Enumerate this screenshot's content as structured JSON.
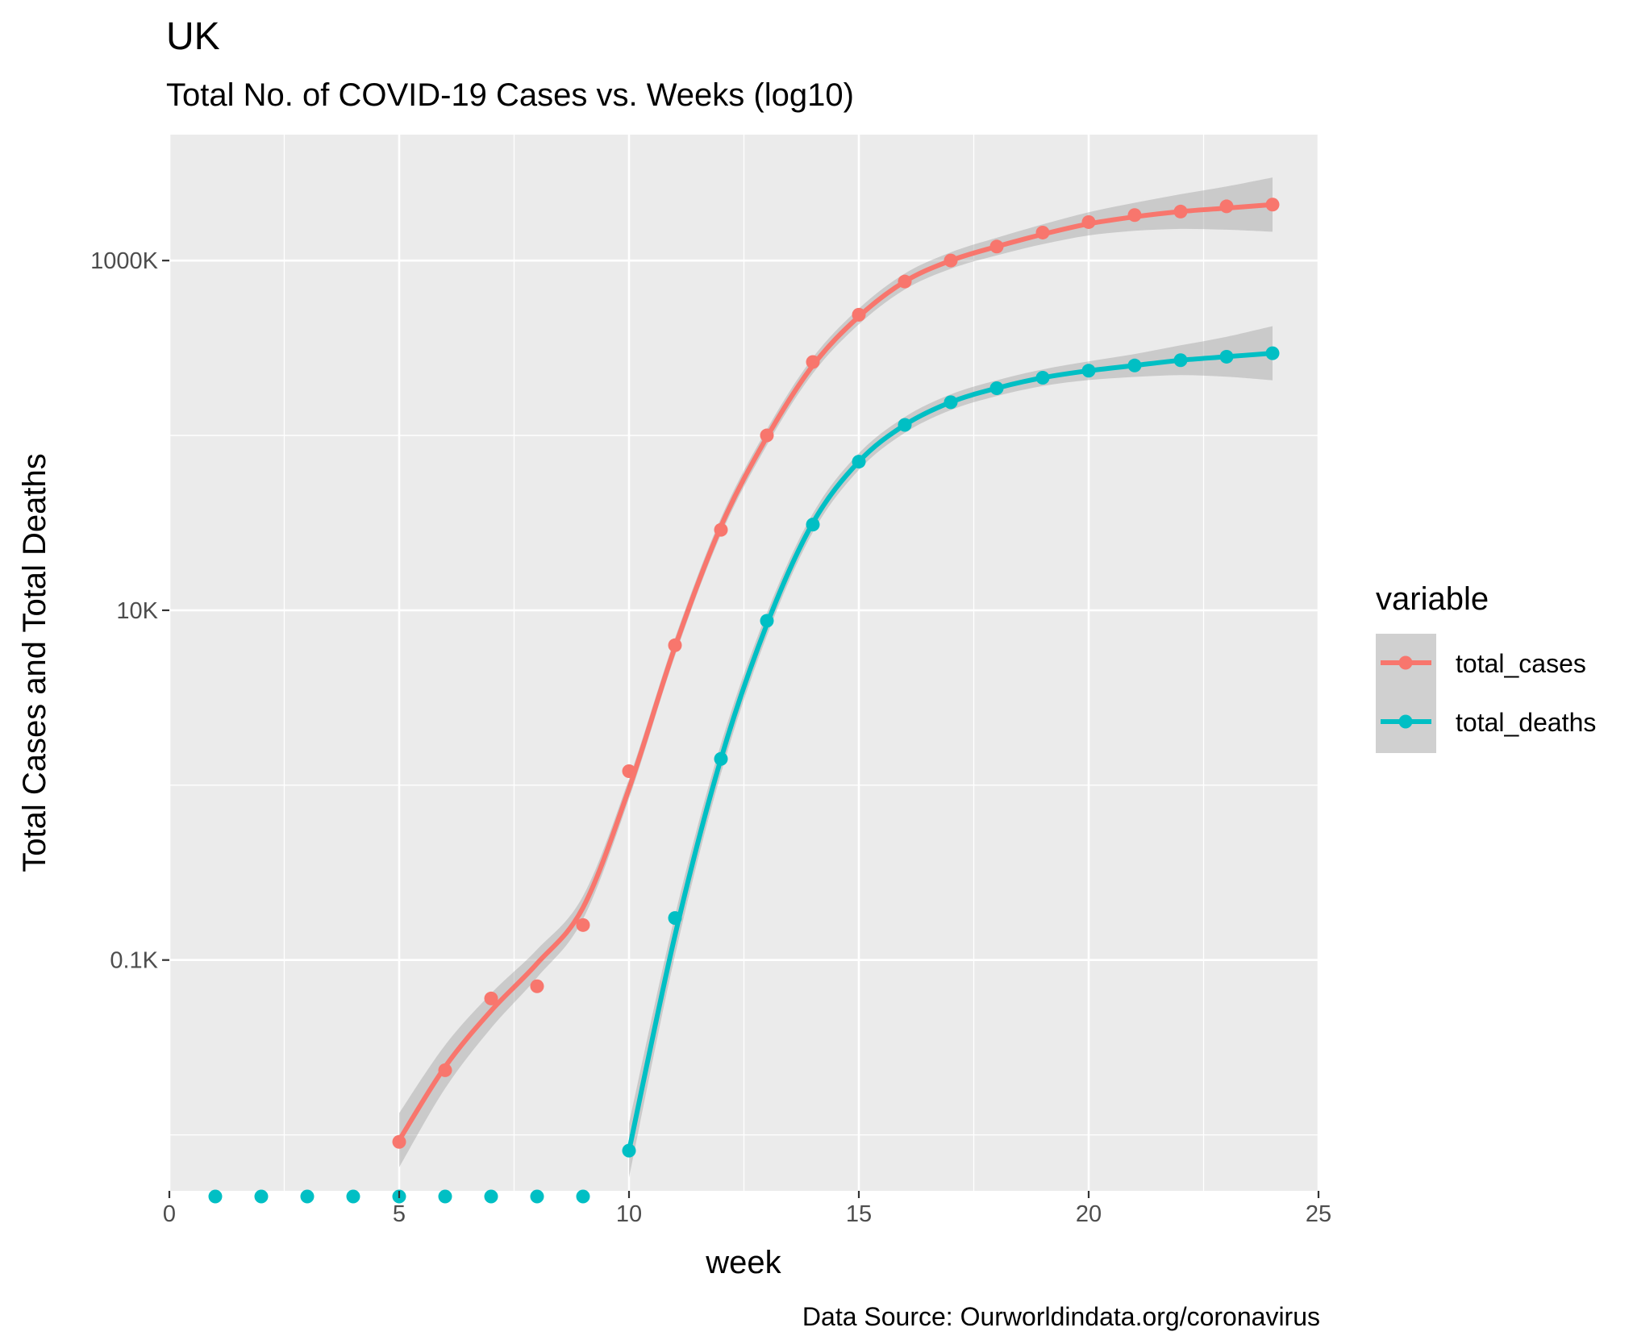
{
  "chart_data": {
    "type": "line",
    "title": "UK",
    "subtitle": "Total No. of COVID-19 Cases vs. Weeks (log10)",
    "xlabel": "week",
    "ylabel": "Total Cases and Total Deaths",
    "caption": "Data Source: Ourworldindata.org/coronavirus",
    "y_scale": "log10",
    "xlim": [
      0,
      25
    ],
    "ylim_log10": [
      -2.32,
      3.72
    ],
    "x_ticks": [
      0,
      5,
      10,
      15,
      20,
      25
    ],
    "x_tick_labels": [
      "0",
      "5",
      "10",
      "15",
      "20",
      "25"
    ],
    "y_ticks_log10": [
      -1,
      1,
      3
    ],
    "y_tick_labels": [
      "0.1K",
      "10K",
      "1000K"
    ],
    "grid": true,
    "smooth_band": true,
    "legend": {
      "title": "variable",
      "position": "right",
      "entries": [
        "total_cases",
        "total_deaths"
      ]
    },
    "floor_label": "0",
    "series": [
      {
        "name": "total_cases",
        "color": "#F8766D",
        "x": [
          5,
          6,
          7,
          8,
          9,
          10,
          11,
          12,
          13,
          14,
          15,
          16,
          17,
          18,
          19,
          20,
          21,
          22,
          23,
          24
        ],
        "y": [
          0.009,
          0.023,
          0.06,
          0.07,
          0.16,
          1.2,
          6.3,
          28.7,
          99.0,
          265.0,
          492.0,
          760.0,
          1000.0,
          1200.0,
          1450.0,
          1650.0,
          1800.0,
          1920.0,
          2020.0,
          2100.0
        ],
        "points_log10": [
          -2.04,
          -1.63,
          -1.22,
          -1.15,
          -0.8,
          0.08,
          0.8,
          1.46,
          2.0,
          2.42,
          2.69,
          2.88,
          3.0,
          3.08,
          3.16,
          3.22,
          3.26,
          3.28,
          3.31,
          3.32
        ],
        "fit_log10": [
          -2.03,
          -1.61,
          -1.29,
          -1.02,
          -0.7,
          -0.02,
          0.79,
          1.48,
          1.99,
          2.4,
          2.68,
          2.88,
          3.0,
          3.08,
          3.15,
          3.21,
          3.25,
          3.28,
          3.3,
          3.32
        ]
      },
      {
        "name": "total_deaths",
        "color": "#00BFC4",
        "x": [
          1,
          2,
          3,
          4,
          5,
          6,
          7,
          8,
          9,
          10,
          11,
          12,
          13,
          14,
          15,
          16,
          17,
          18,
          19,
          20,
          21,
          22,
          23,
          24
        ],
        "y": [
          0,
          0,
          0,
          0,
          0,
          0,
          0,
          0,
          0,
          0.008,
          0.17,
          1.4,
          8.6,
          30.9,
          71.0,
          116.0,
          155.0,
          188.0,
          212.0,
          235.0,
          250.0,
          265.0,
          280.0,
          290.0
        ],
        "points_log10": [
          null,
          null,
          null,
          null,
          null,
          null,
          null,
          null,
          null,
          -2.09,
          -0.76,
          0.15,
          0.94,
          1.49,
          1.85,
          2.06,
          2.19,
          2.27,
          2.33,
          2.37,
          2.4,
          2.43,
          2.45,
          2.47
        ],
        "fit_log10": [
          null,
          null,
          null,
          null,
          null,
          null,
          null,
          null,
          null,
          -2.09,
          -0.86,
          0.15,
          0.92,
          1.5,
          1.85,
          2.06,
          2.19,
          2.27,
          2.33,
          2.37,
          2.4,
          2.43,
          2.45,
          2.47
        ]
      }
    ]
  }
}
